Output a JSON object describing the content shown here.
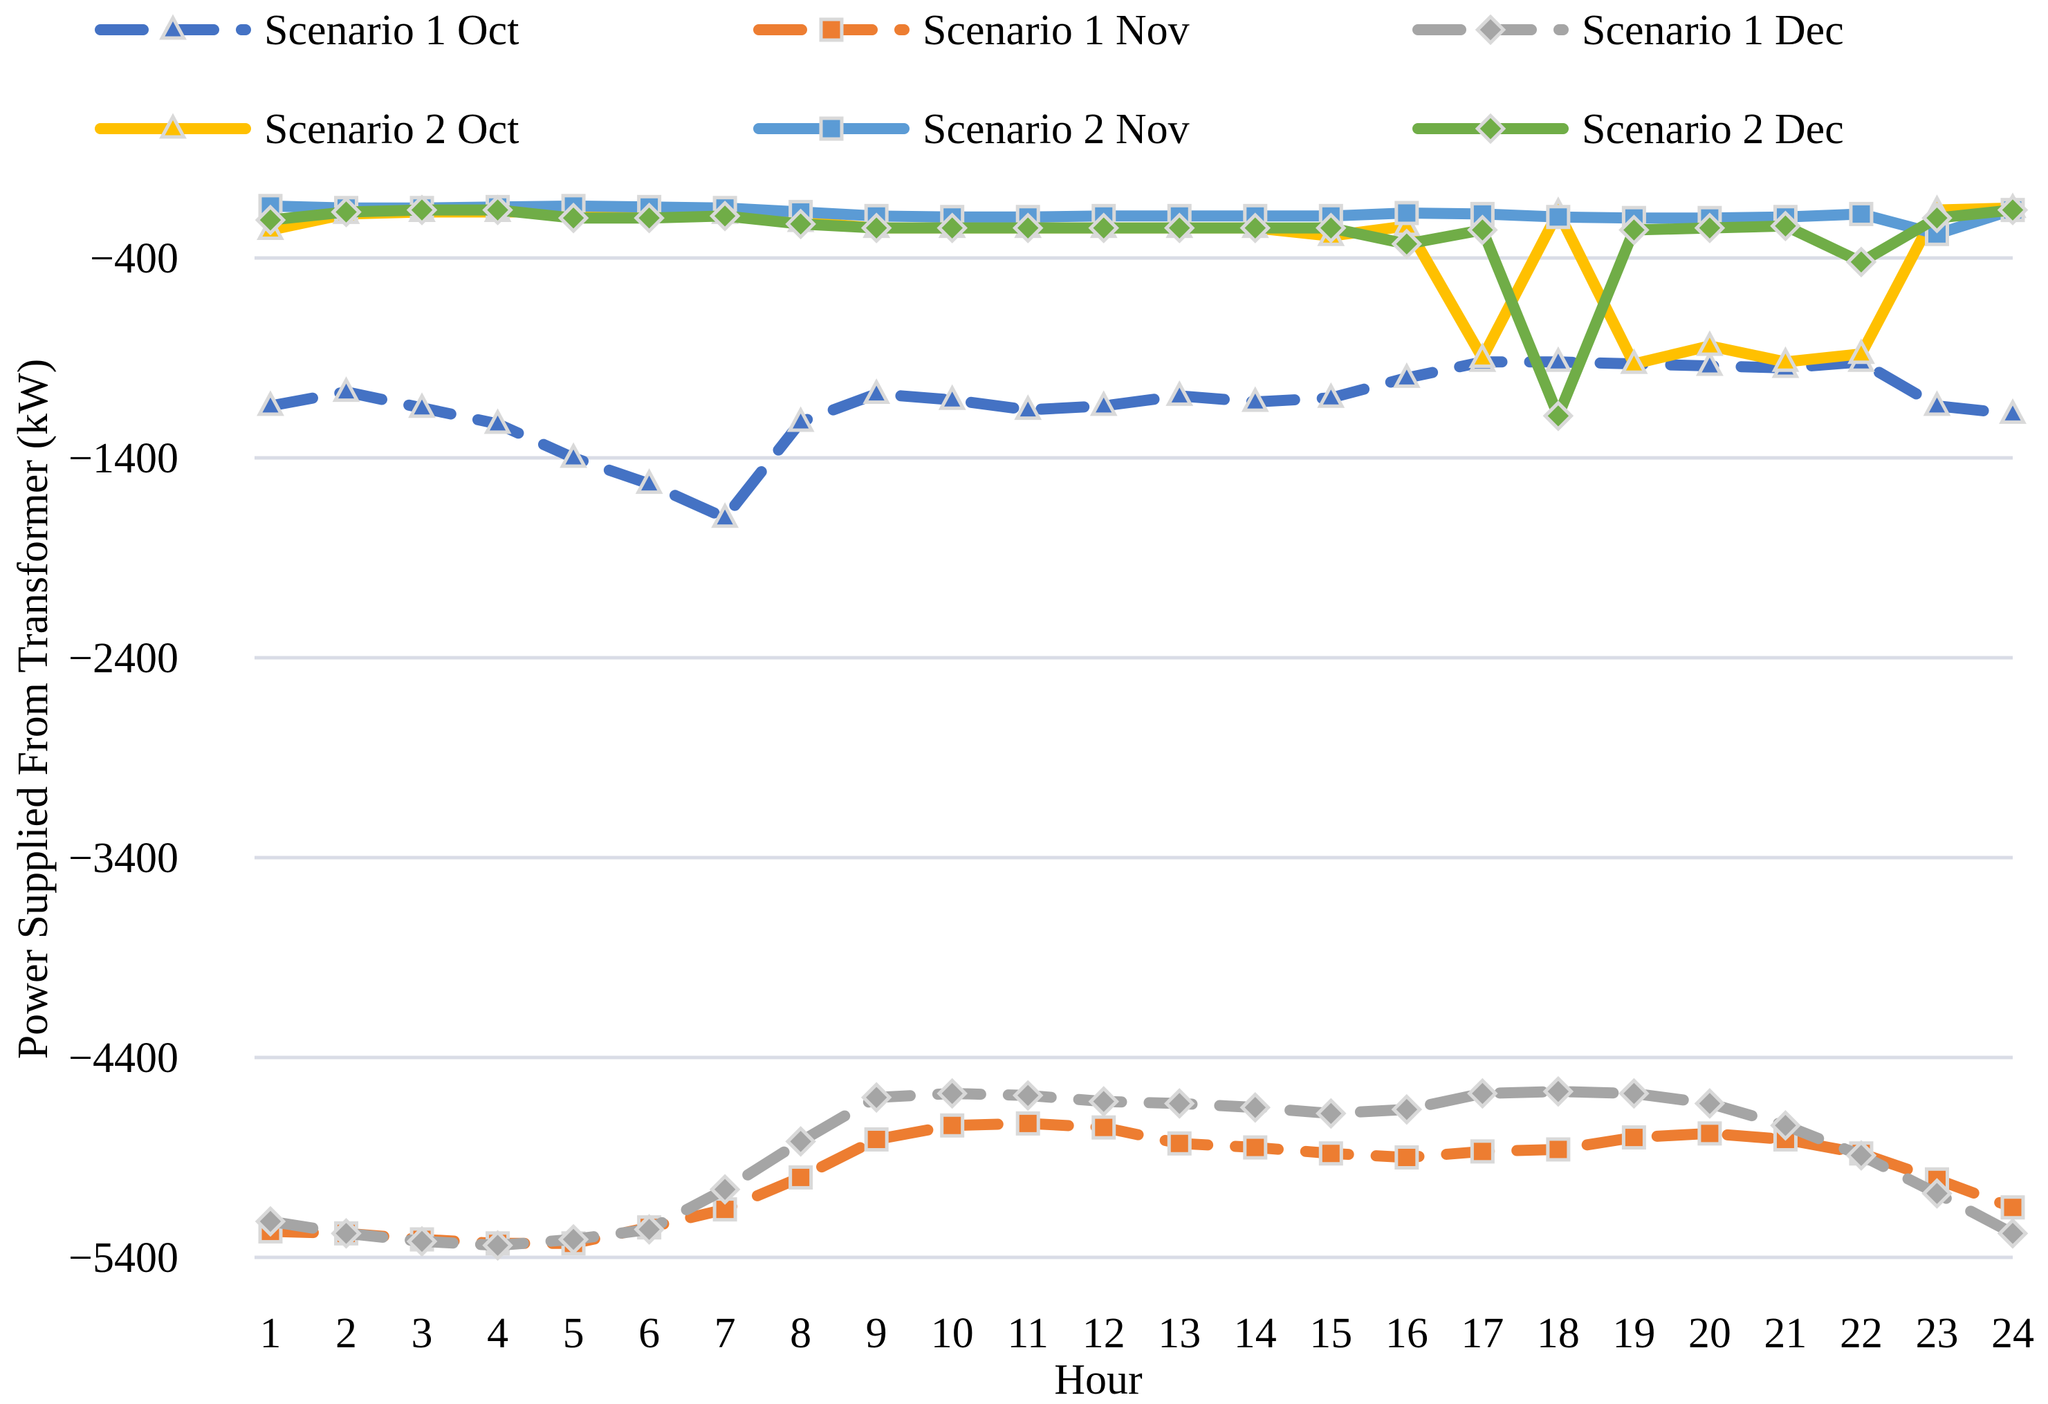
{
  "chart_data": {
    "type": "line",
    "title": "",
    "xlabel": "Hour",
    "ylabel": "Power Supplied From Transformer (kW)",
    "ylim": [
      -5400,
      -200
    ],
    "yticks": [
      -400,
      -1400,
      -2400,
      -3400,
      -4400,
      -5400
    ],
    "ytick_labels": [
      "−400",
      "−1400",
      "−2400",
      "−3400",
      "−4400",
      "−5400"
    ],
    "grid": true,
    "legend_position": "top",
    "categories": [
      "1",
      "2",
      "3",
      "4",
      "5",
      "6",
      "7",
      "8",
      "9",
      "10",
      "11",
      "12",
      "13",
      "14",
      "15",
      "16",
      "17",
      "18",
      "19",
      "20",
      "21",
      "22",
      "23",
      "24"
    ],
    "series": [
      {
        "name": "Scenario 1 Oct",
        "color": "#4472c4",
        "dash": true,
        "marker": "triangle",
        "values": [
          -1140,
          -1070,
          -1150,
          -1230,
          -1400,
          -1530,
          -1700,
          -1220,
          -1080,
          -1110,
          -1160,
          -1140,
          -1090,
          -1120,
          -1100,
          -1000,
          -920,
          -920,
          -930,
          -940,
          -950,
          -920,
          -1140,
          -1180
        ]
      },
      {
        "name": "Scenario 1 Nov",
        "color": "#ed7d31",
        "dash": true,
        "marker": "square",
        "values": [
          -5270,
          -5280,
          -5310,
          -5330,
          -5330,
          -5250,
          -5160,
          -5000,
          -4810,
          -4740,
          -4730,
          -4750,
          -4830,
          -4850,
          -4880,
          -4900,
          -4870,
          -4860,
          -4800,
          -4780,
          -4810,
          -4880,
          -5010,
          -5150
        ]
      },
      {
        "name": "Scenario 1 Dec",
        "color": "#a5a5a5",
        "dash": true,
        "marker": "diamond",
        "values": [
          -5220,
          -5280,
          -5320,
          -5340,
          -5310,
          -5260,
          -5060,
          -4820,
          -4600,
          -4580,
          -4590,
          -4620,
          -4630,
          -4650,
          -4680,
          -4660,
          -4580,
          -4570,
          -4580,
          -4630,
          -4740,
          -4890,
          -5080,
          -5280
        ]
      },
      {
        "name": "Scenario 2 Oct",
        "color": "#ffc000",
        "dash": false,
        "marker": "triangle",
        "values": [
          -260,
          -180,
          -170,
          -170,
          -170,
          -170,
          -180,
          -220,
          -250,
          -250,
          -250,
          -250,
          -250,
          -250,
          -290,
          -240,
          -900,
          -170,
          -930,
          -840,
          -920,
          -880,
          -160,
          -150
        ]
      },
      {
        "name": "Scenario 2 Nov",
        "color": "#5b9bd5",
        "dash": false,
        "marker": "square",
        "values": [
          -140,
          -150,
          -150,
          -145,
          -140,
          -145,
          -150,
          -170,
          -190,
          -195,
          -195,
          -190,
          -190,
          -190,
          -190,
          -175,
          -180,
          -195,
          -200,
          -200,
          -195,
          -180,
          -280,
          -160
        ]
      },
      {
        "name": "Scenario 2 Dec",
        "color": "#70ad47",
        "dash": false,
        "marker": "diamond",
        "values": [
          -210,
          -170,
          -160,
          -160,
          -200,
          -200,
          -190,
          -230,
          -250,
          -250,
          -250,
          -250,
          -250,
          -250,
          -250,
          -330,
          -260,
          -1190,
          -260,
          -250,
          -240,
          -420,
          -200,
          -160
        ]
      }
    ]
  }
}
